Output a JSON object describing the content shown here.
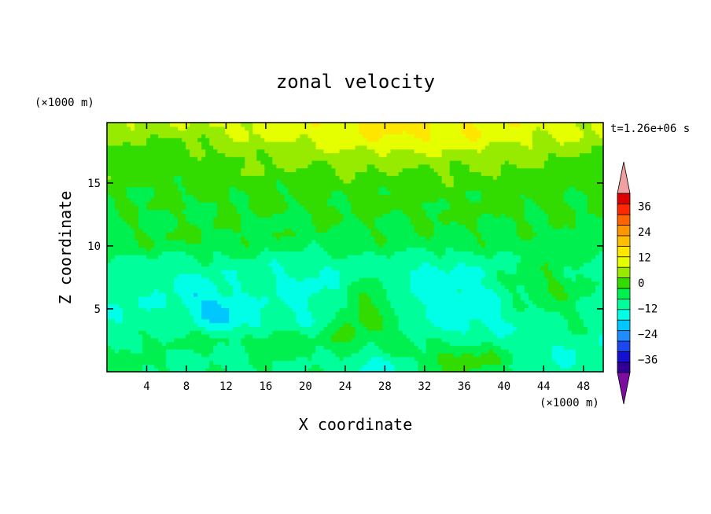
{
  "chart_data": {
    "type": "heatmap",
    "title": "zonal velocity",
    "xlabel": "X coordinate",
    "ylabel": "Z coordinate",
    "x_unit": "(×1000 m)",
    "y_unit": "(×1000 m)",
    "time_label": "t=1.26e+06 s",
    "xlim": [
      0,
      50
    ],
    "ylim": [
      0,
      19.8
    ],
    "x_ticks": [
      4,
      8,
      12,
      16,
      20,
      24,
      28,
      32,
      36,
      40,
      44,
      48
    ],
    "y_ticks": [
      5,
      10,
      15
    ],
    "grid": false,
    "colorbar": {
      "position": "right",
      "tick_labels": [
        "36",
        "24",
        "12",
        "0",
        "−12",
        "−24",
        "−36"
      ],
      "tick_values": [
        36,
        24,
        12,
        0,
        -12,
        -24,
        -36
      ],
      "range": [
        -42,
        42
      ],
      "level_step": 6,
      "extend": "both",
      "colors": [
        "#7d0da0",
        "#300096",
        "#1410d2",
        "#1e46f0",
        "#1e8cff",
        "#00c8ff",
        "#00ffe6",
        "#00ff9b",
        "#00f050",
        "#32dc00",
        "#96eb00",
        "#e6ff00",
        "#ffe600",
        "#ffbe00",
        "#ff9600",
        "#ff6400",
        "#ff2800",
        "#dc0000",
        "#f0a0a0"
      ]
    },
    "field": {
      "base_profile": {
        "z": [
          0,
          2,
          4,
          6,
          8,
          9,
          10,
          11,
          12,
          13,
          14,
          15,
          16,
          17,
          18,
          19,
          19.8
        ],
        "u": [
          -1,
          -3,
          -5,
          -4.5,
          -4,
          -2,
          2,
          3.5,
          4,
          6,
          6.5,
          9,
          11,
          13,
          16,
          19,
          20
        ]
      },
      "anomalies": [
        {
          "x": 26,
          "z": 5,
          "amp": 13,
          "sx": 2.6,
          "sz": 2.0,
          "tilt": -0.45
        },
        {
          "x": 29,
          "z": 3,
          "amp": 5,
          "sx": 1.5,
          "sz": 1.0,
          "tilt": 0
        },
        {
          "x": 36,
          "z": 1,
          "amp": 11,
          "sx": 3.5,
          "sz": 1.0,
          "tilt": 0
        },
        {
          "x": 44,
          "z": 7,
          "amp": 10,
          "sx": 3.0,
          "sz": 1.5,
          "tilt": 0
        },
        {
          "x": 47,
          "z": 4.5,
          "amp": 4,
          "sx": 2.0,
          "sz": 1.5,
          "tilt": 0
        },
        {
          "x": 13,
          "z": 2.5,
          "amp": 6,
          "sx": 8.0,
          "sz": 0.7,
          "tilt": 0
        },
        {
          "x": 17,
          "z": 2,
          "amp": 4,
          "sx": 1.5,
          "sz": 1.5,
          "tilt": 0
        },
        {
          "x": 2,
          "z": 1,
          "amp": 4,
          "sx": 2.0,
          "sz": 1.0,
          "tilt": 0
        },
        {
          "x": 11,
          "z": 5,
          "amp": -9,
          "sx": 2.5,
          "sz": 1.2,
          "tilt": 0.4
        },
        {
          "x": 27,
          "z": 0.4,
          "amp": -9,
          "sx": 2.2,
          "sz": 0.8,
          "tilt": 0
        },
        {
          "x": 30,
          "z": 7.5,
          "amp": -5,
          "sx": 3.0,
          "sz": 1.5,
          "tilt": 0
        },
        {
          "x": 36,
          "z": 5.5,
          "amp": -5,
          "sx": 3.0,
          "sz": 2.0,
          "tilt": 0
        },
        {
          "x": 46,
          "z": 0.8,
          "amp": -5,
          "sx": 3.0,
          "sz": 1.0,
          "tilt": 0
        },
        {
          "x": 20,
          "z": 6.5,
          "amp": -3,
          "sx": 3.0,
          "sz": 2.0,
          "tilt": 0
        },
        {
          "x": 8,
          "z": 10.5,
          "amp": 3,
          "sx": 6.0,
          "sz": 1.0,
          "tilt": 0
        },
        {
          "x": 34,
          "z": 12,
          "amp": 2,
          "sx": 10.0,
          "sz": 1.5,
          "tilt": 0
        },
        {
          "x": 5,
          "z": 18,
          "amp": -6,
          "sx": 5.0,
          "sz": 1.5,
          "tilt": 0
        },
        {
          "x": 30,
          "z": 19,
          "amp": 6,
          "sx": 8.0,
          "sz": 1.5,
          "tilt": 0
        },
        {
          "x": 48,
          "z": 17,
          "amp": -2,
          "sx": 3.0,
          "sz": 2.0,
          "tilt": 0
        }
      ]
    }
  }
}
